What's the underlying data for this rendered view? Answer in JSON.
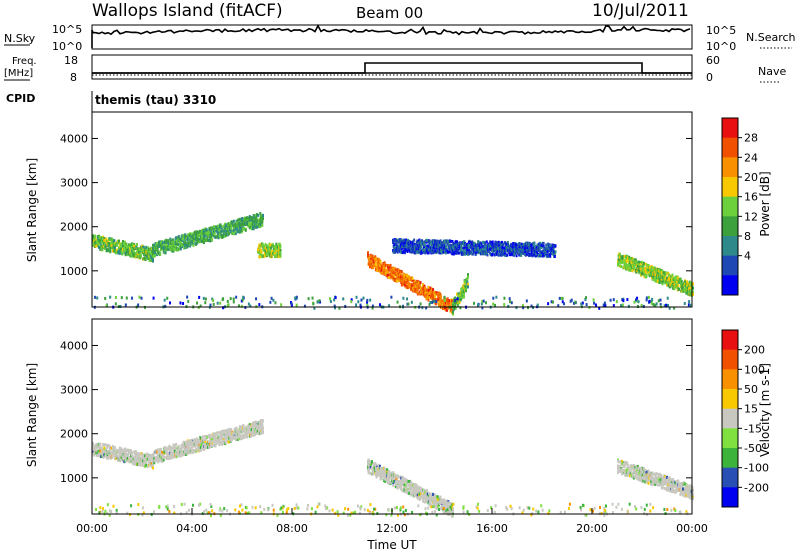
{
  "header": {
    "station": "Wallops Island (fitACF)",
    "beam": "Beam 00",
    "date": "10/Jul/2011"
  },
  "top_panels": {
    "nsky_label": "N.Sky",
    "nsky_ticks": [
      "10^5",
      "10^0"
    ],
    "nsearch_label": "N.Search",
    "nsearch_ticks": [
      "10^5",
      "10^0"
    ],
    "freq_label": "Freq.",
    "freq_unit": "[MHz]",
    "freq_ticks": [
      "18",
      "8"
    ],
    "nave_label": "Nave",
    "nave_ticks": [
      "60",
      "0"
    ],
    "cpid_label": "CPID",
    "cpid_value": "themis (tau) 3310"
  },
  "chart_data": [
    {
      "type": "heatmap",
      "name": "power",
      "ylabel": "Slant Range [km]",
      "yticks": [
        "4000",
        "3000",
        "2000",
        "1000"
      ],
      "ytick_values": [
        4000,
        3000,
        2000,
        1000
      ],
      "ylim": [
        180,
        4600
      ],
      "xlim": [
        0,
        24
      ],
      "colorbar_label": "Power [dB]",
      "colorbar_ticks": [
        "28",
        "24",
        "20",
        "16",
        "12",
        "8",
        "4"
      ],
      "colorbar_colors": [
        "#0000f0",
        "#1e48b4",
        "#2e8a8a",
        "#3ca03c",
        "#6cd03c",
        "#f8c800",
        "#f89000",
        "#f05000",
        "#e81010"
      ],
      "features": [
        {
          "t0": 0.0,
          "t1": 2.4,
          "r0": 1700,
          "r1": 1400,
          "value": 14
        },
        {
          "t0": 2.4,
          "t1": 6.8,
          "r0": 1500,
          "r1": 2200,
          "value": 12
        },
        {
          "t0": 6.6,
          "t1": 7.5,
          "r0": 1500,
          "r1": 1500,
          "value": 16
        },
        {
          "t0": 11.0,
          "t1": 14.4,
          "r0": 1300,
          "r1": 200,
          "value": 26
        },
        {
          "t0": 14.4,
          "t1": 15.0,
          "r0": 200,
          "r1": 800,
          "value": 14
        },
        {
          "t0": 12.0,
          "t1": 18.5,
          "r0": 1600,
          "r1": 1500,
          "value": 4
        },
        {
          "t0": 21.0,
          "t1": 24.0,
          "r0": 1300,
          "r1": 600,
          "value": 16
        }
      ]
    },
    {
      "type": "heatmap",
      "name": "velocity",
      "ylabel": "Slant Range [km]",
      "yticks": [
        "4000",
        "3000",
        "2000",
        "1000"
      ],
      "ytick_values": [
        4000,
        3000,
        2000,
        1000
      ],
      "ylim": [
        180,
        4600
      ],
      "xlim": [
        0,
        24
      ],
      "xlabel": "Time UT",
      "xticks": [
        "00:00",
        "04:00",
        "08:00",
        "12:00",
        "16:00",
        "20:00",
        "00:00"
      ],
      "colorbar_label": "Velocity [m s-1]",
      "colorbar_ticks": [
        "200",
        "100",
        "50",
        "15",
        "-15",
        "-50",
        "-100",
        "-200"
      ],
      "colorbar_colors": [
        "#0000f0",
        "#2850b4",
        "#3cb43c",
        "#80e040",
        "#c8c8c0",
        "#f8c800",
        "#f89000",
        "#f05000",
        "#e81010"
      ],
      "features": [
        {
          "t0": 0.0,
          "t1": 2.4,
          "r0": 1700,
          "r1": 1400,
          "value": 0
        },
        {
          "t0": 2.4,
          "t1": 6.8,
          "r0": 1500,
          "r1": 2200,
          "value": 0
        },
        {
          "t0": 11.0,
          "t1": 14.4,
          "r0": 1300,
          "r1": 300,
          "value": 0
        },
        {
          "t0": 21.0,
          "t1": 24.0,
          "r0": 1300,
          "r1": 700,
          "value": 0
        }
      ]
    }
  ]
}
